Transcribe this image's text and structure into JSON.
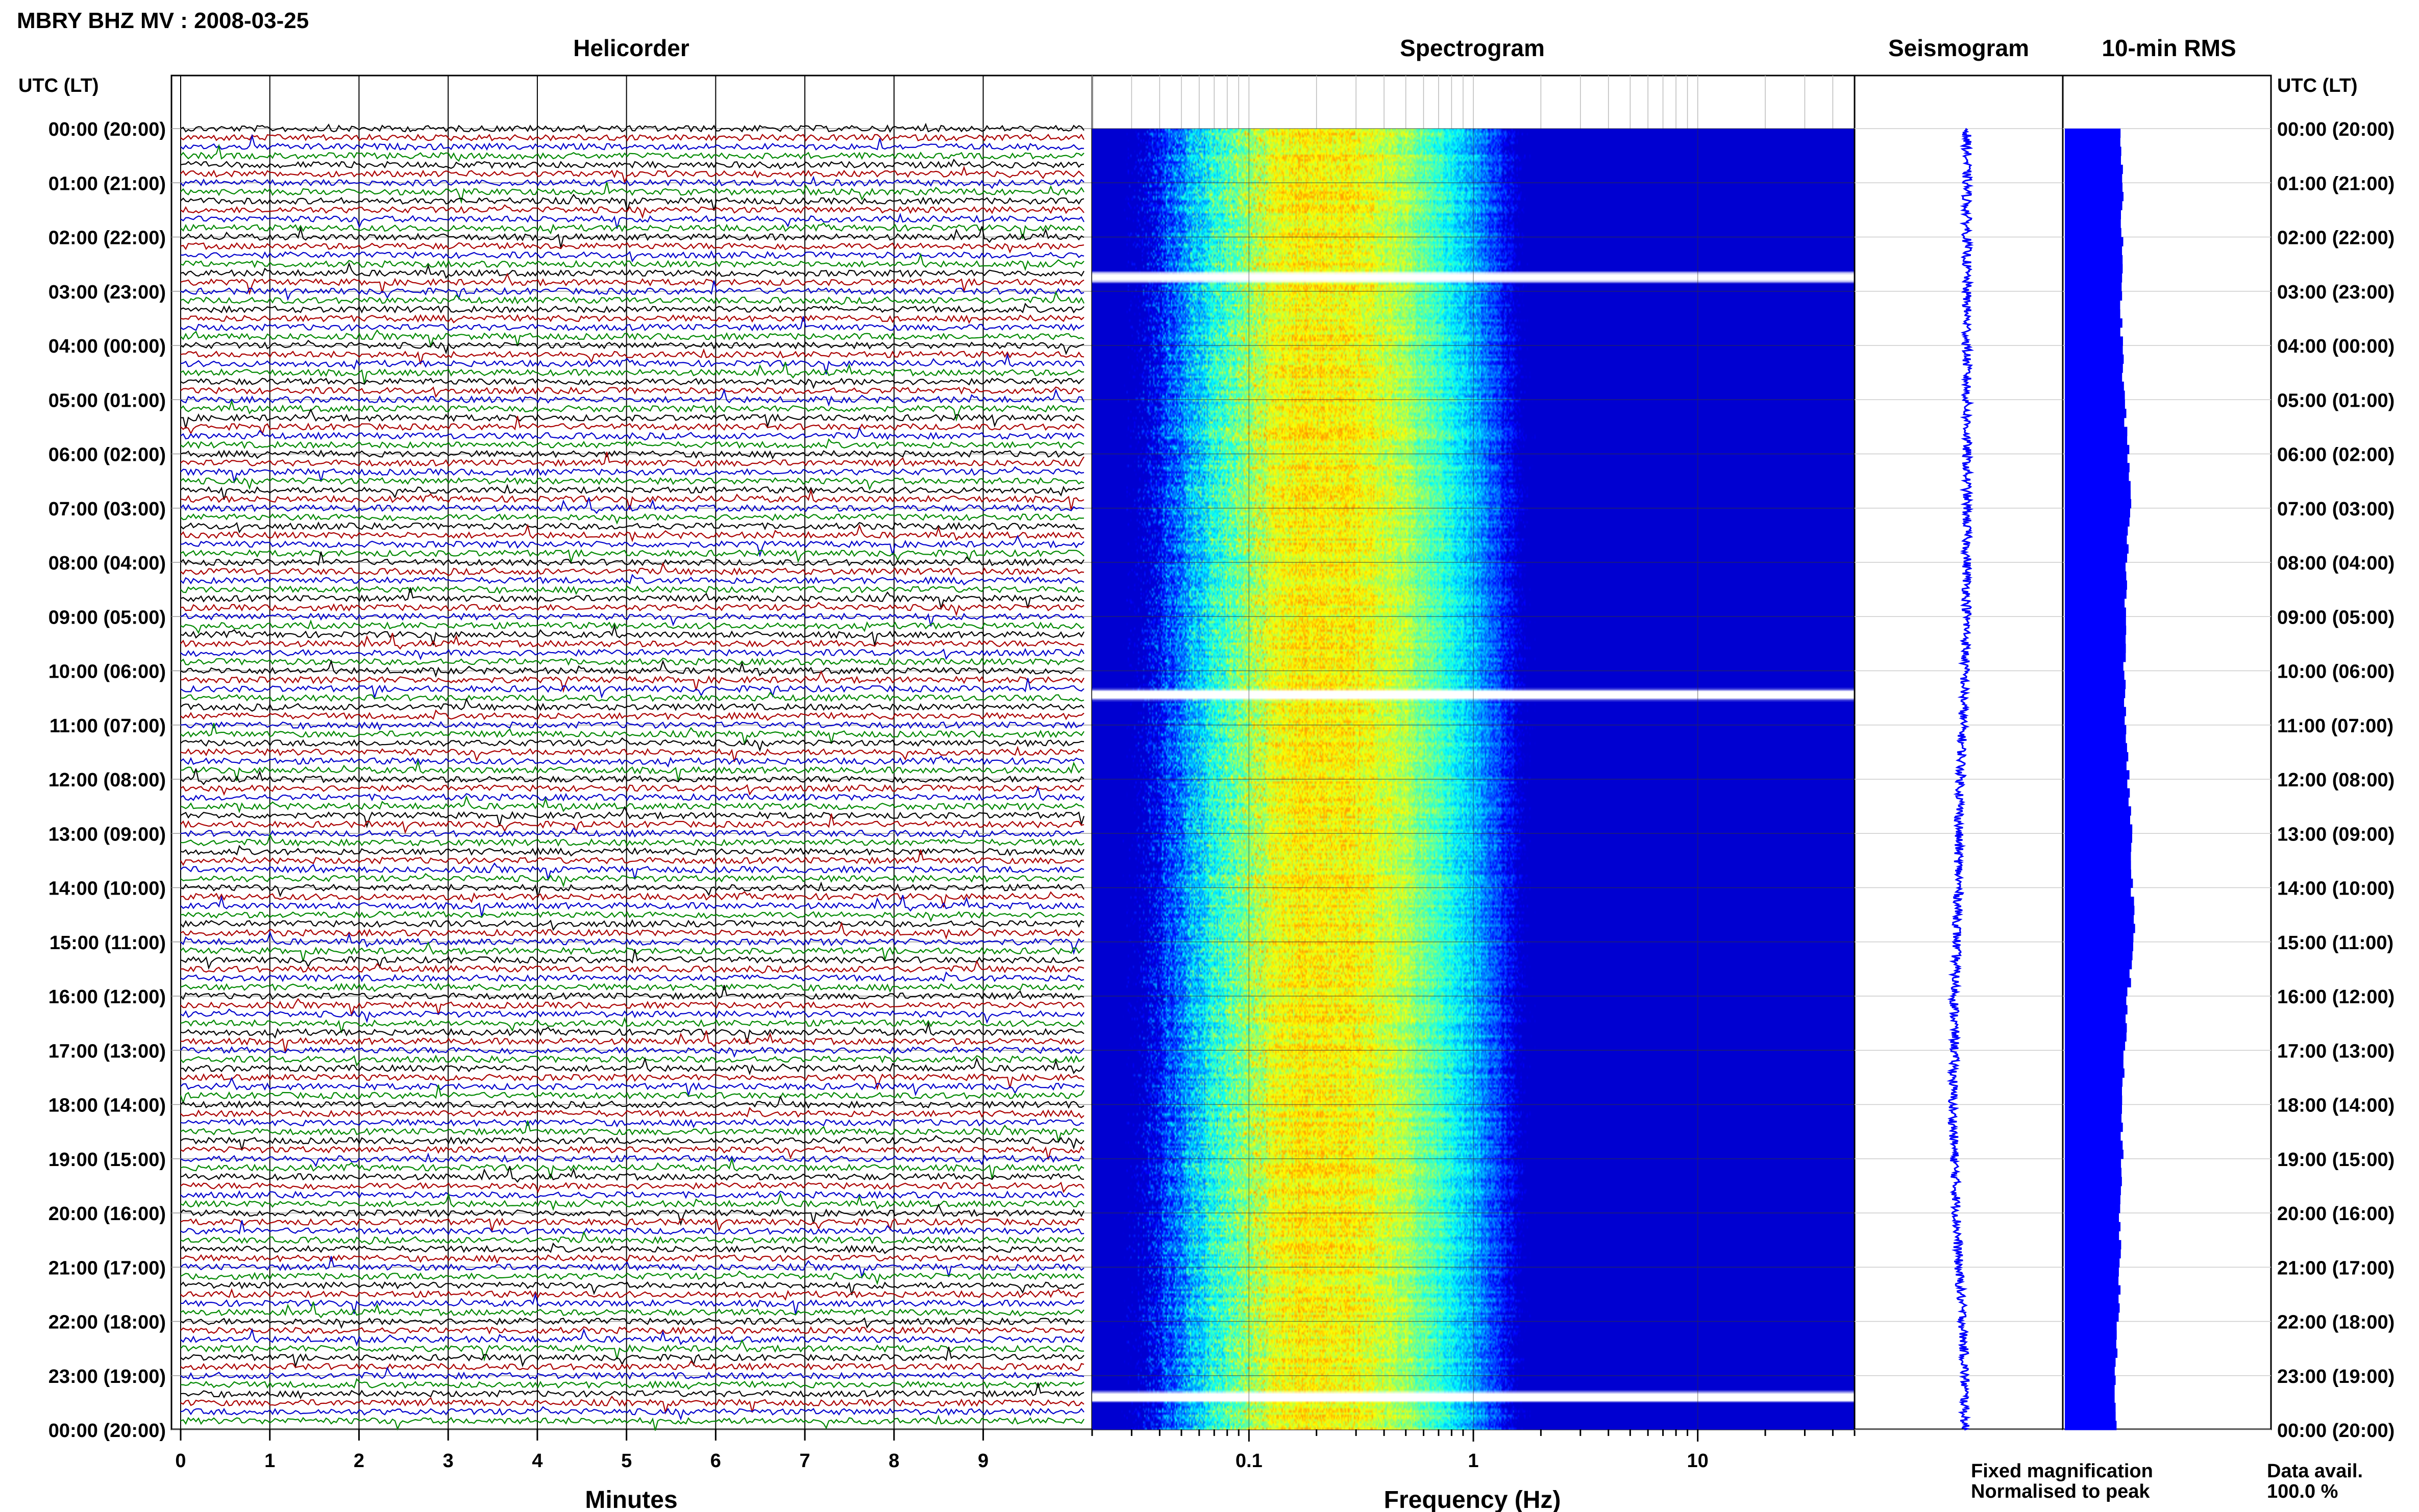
{
  "header": {
    "station_title": "MBRY BHZ MV : 2008-03-25",
    "utc_lt_label": "UTC (LT)"
  },
  "panels": {
    "helicorder": "Helicorder",
    "spectrogram": "Spectrogram",
    "seismogram": "Seismogram",
    "rms": "10-min RMS"
  },
  "axes": {
    "minutes_label": "Minutes",
    "frequency_label": "Frequency (Hz)",
    "minute_ticks": [
      "0",
      "1",
      "2",
      "3",
      "4",
      "5",
      "6",
      "7",
      "8",
      "9"
    ],
    "frequency_ticks": [
      "0.1",
      "1",
      "10"
    ]
  },
  "time_labels": [
    "00:00 (20:00)",
    "01:00 (21:00)",
    "02:00 (22:00)",
    "03:00 (23:00)",
    "04:00 (00:00)",
    "05:00 (01:00)",
    "06:00 (02:00)",
    "07:00 (03:00)",
    "08:00 (04:00)",
    "09:00 (05:00)",
    "10:00 (06:00)",
    "11:00 (07:00)",
    "12:00 (08:00)",
    "13:00 (09:00)",
    "14:00 (10:00)",
    "15:00 (11:00)",
    "16:00 (12:00)",
    "17:00 (13:00)",
    "18:00 (14:00)",
    "19:00 (15:00)",
    "20:00 (16:00)",
    "21:00 (17:00)",
    "22:00 (18:00)",
    "23:00 (19:00)",
    "00:00 (20:00)"
  ],
  "legend": {
    "fixed": "Fixed magnification",
    "normalised": "Normalised to peak",
    "fixed_color": "#0000ff",
    "normalised_color": "#ff0000"
  },
  "availability": {
    "label": "Data avail.",
    "value": "100.0 %"
  },
  "colors": {
    "trace_cycle": [
      "#000000",
      "#aa0000",
      "#0000cc",
      "#008800"
    ],
    "spectrogram_low": "#00008b",
    "spectrogram_high": "#ffff00",
    "rms_bar": "#0000ff"
  },
  "chart_data": [
    {
      "type": "line",
      "title": "Helicorder",
      "xlabel": "Minutes",
      "ylabel": "UTC (LT)",
      "xlim": [
        0,
        10
      ],
      "lines_per_hour": 6,
      "hours": 24,
      "note_text": ""
    },
    {
      "type": "heatmap",
      "title": "Spectrogram",
      "xlabel": "Frequency (Hz)",
      "xscale": "log",
      "xlim": [
        0.02,
        50
      ],
      "peak_frequency_hz": 0.2,
      "dark_above_hz": 15
    },
    {
      "type": "line",
      "title": "Seismogram",
      "hours": [
        0,
        1,
        2,
        3,
        4,
        5,
        6,
        7,
        8,
        9,
        10,
        11,
        12,
        13,
        14,
        15,
        16,
        17,
        18,
        19,
        20,
        21,
        22,
        23,
        24
      ],
      "offset": [
        0.1,
        0.1,
        0.1,
        0.1,
        0.1,
        0.1,
        0.1,
        0.1,
        0.1,
        0.1,
        0.05,
        0.0,
        -0.05,
        -0.1,
        -0.1,
        -0.15,
        -0.2,
        -0.2,
        -0.25,
        -0.2,
        -0.15,
        -0.1,
        0.0,
        0.05,
        0.05
      ]
    },
    {
      "type": "bar",
      "title": "10-min RMS",
      "hours": [
        0,
        1,
        2,
        3,
        4,
        5,
        6,
        7,
        8,
        9,
        10,
        11,
        12,
        13,
        14,
        15,
        16,
        17,
        18,
        19,
        20,
        21,
        22,
        23,
        24
      ],
      "relative_rms": [
        0.55,
        0.57,
        0.56,
        0.55,
        0.56,
        0.58,
        0.62,
        0.65,
        0.6,
        0.6,
        0.58,
        0.6,
        0.62,
        0.65,
        0.66,
        0.68,
        0.62,
        0.58,
        0.56,
        0.56,
        0.54,
        0.54,
        0.52,
        0.5,
        0.5
      ]
    }
  ]
}
